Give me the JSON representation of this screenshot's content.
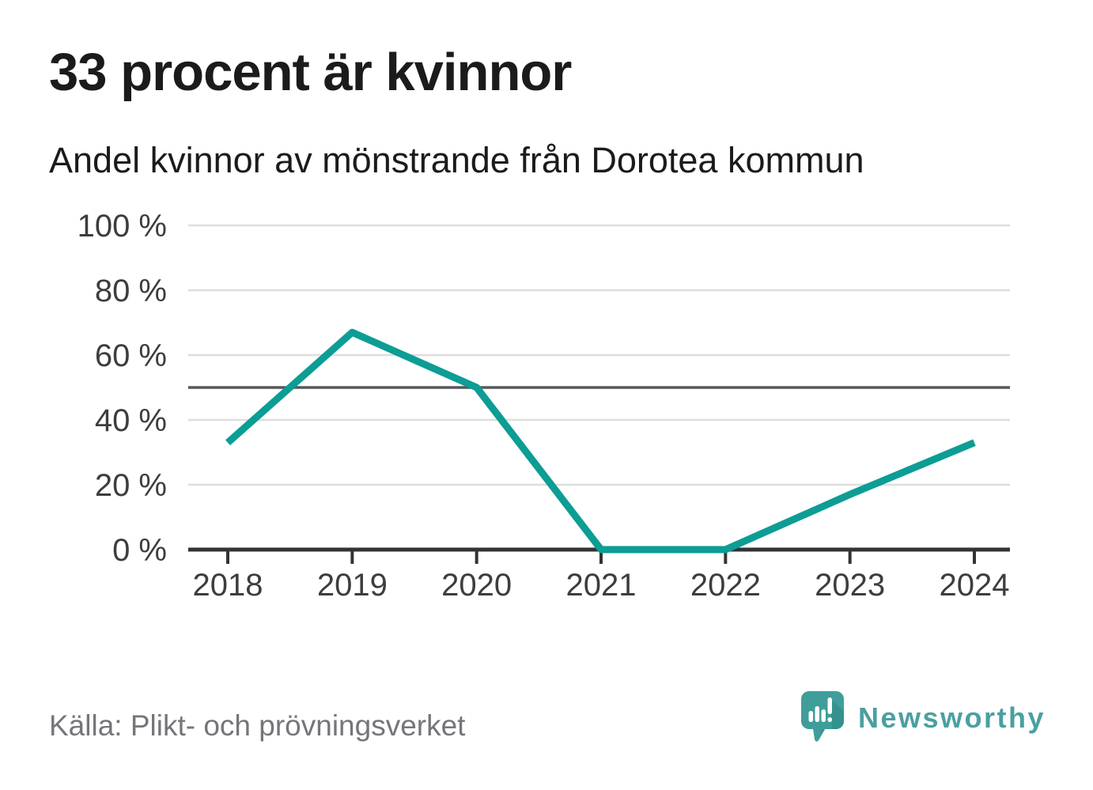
{
  "header": {
    "title": "33 procent är kvinnor",
    "subtitle": "Andel kvinnor av mönstrande från Dorotea kommun"
  },
  "chart_data": {
    "type": "line",
    "x": [
      "2018",
      "2019",
      "2020",
      "2021",
      "2022",
      "2023",
      "2024"
    ],
    "series": [
      {
        "name": "Andel kvinnor av mönstrande",
        "values": [
          33,
          67,
          50,
          0,
          0,
          17,
          33
        ]
      }
    ],
    "title": "33 procent är kvinnor",
    "subtitle": "Andel kvinnor av mönstrande från Dorotea kommun",
    "xlabel": "",
    "ylabel": "",
    "ylim": [
      0,
      100
    ],
    "yticks": [
      0,
      20,
      40,
      60,
      80,
      100
    ],
    "ytick_suffix": " %",
    "reference_line_y": 50,
    "grid": true,
    "legend": false,
    "colors": {
      "line": "#0c9d94",
      "grid": "#dedede",
      "reference_line": "#57575c",
      "axis": "#333333",
      "tick_label": "#3d3d3d"
    }
  },
  "footer": {
    "source": "Källa: Plikt- och prövningsverket",
    "brand": "Newsworthy",
    "brand_color": "#4aa0a1",
    "logo_icon": "newsworthy-speech-bubble-barchart-icon",
    "logo_colors": {
      "bubble": "#3f9e9a",
      "shadow": "#35918d",
      "glyph": "#ffffff"
    }
  }
}
